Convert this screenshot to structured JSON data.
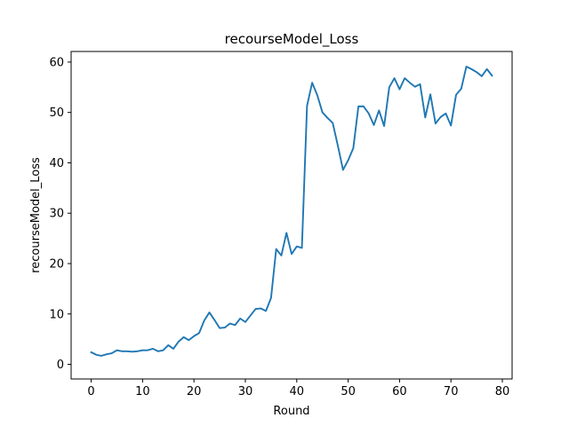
{
  "chart_data": {
    "type": "line",
    "title": "recourseModel_Loss",
    "xlabel": "Round",
    "ylabel": "recourseModel_Loss",
    "xlim": [
      -3.9,
      81.9
    ],
    "ylim": [
      -2.9,
      62.1
    ],
    "xticks": [
      0,
      10,
      20,
      30,
      40,
      50,
      60,
      70,
      80
    ],
    "yticks": [
      0,
      10,
      20,
      30,
      40,
      50,
      60
    ],
    "grid": false,
    "line_color": "#1f77b4",
    "series": [
      {
        "x": [
          0,
          1,
          2,
          3,
          4,
          5,
          6,
          7,
          8,
          9,
          10,
          11,
          12,
          13,
          14,
          15,
          16,
          17,
          18,
          19,
          20,
          21,
          22,
          23,
          24,
          25,
          26,
          27,
          28,
          29,
          30,
          31,
          32,
          33,
          34,
          35,
          36,
          37,
          38,
          39,
          40,
          41,
          42,
          43,
          44,
          45,
          46,
          47,
          48,
          49,
          50,
          51,
          52,
          53,
          54,
          55,
          56,
          57,
          58,
          59,
          60,
          61,
          62,
          63,
          64,
          65,
          66,
          67,
          68,
          69,
          70,
          71,
          72,
          73,
          74,
          75,
          76,
          77,
          78
        ],
        "values": [
          2.4,
          1.9,
          1.7,
          2.0,
          2.2,
          2.8,
          2.6,
          2.6,
          2.5,
          2.6,
          2.8,
          2.8,
          3.1,
          2.6,
          2.8,
          3.8,
          3.1,
          4.5,
          5.4,
          4.8,
          5.6,
          6.2,
          8.7,
          10.3,
          8.8,
          7.2,
          7.3,
          8.1,
          7.8,
          9.1,
          8.4,
          9.7,
          11.0,
          11.1,
          10.6,
          13.2,
          22.9,
          21.6,
          26.1,
          21.9,
          23.4,
          23.1,
          51.3,
          55.9,
          53.4,
          50.0,
          48.9,
          47.9,
          43.4,
          38.6,
          40.5,
          42.9,
          51.2,
          51.2,
          49.8,
          47.5,
          50.4,
          47.3,
          55.0,
          56.8,
          54.6,
          56.8,
          55.9,
          55.1,
          55.6,
          49.0,
          53.6,
          47.8,
          49.1,
          49.8,
          47.4,
          53.5,
          54.7,
          59.1,
          58.6,
          58.0,
          57.2,
          58.6,
          57.3
        ]
      }
    ]
  }
}
